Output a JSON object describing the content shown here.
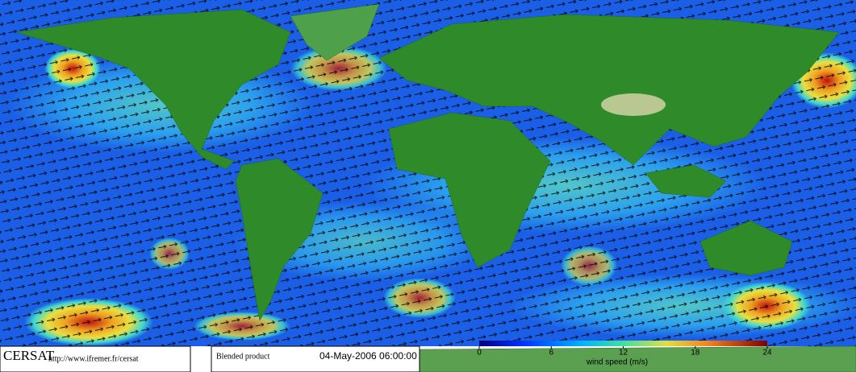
{
  "branding": {
    "name": "CERSAT",
    "url": "http://www.ifremer.fr/cersat"
  },
  "product": "Blended product",
  "timestamp": "04-May-2006 06:00:00",
  "colorbar": {
    "label": "wind speed (m/s)",
    "lim": [
      0,
      24
    ],
    "ticks": [
      0,
      6,
      12,
      18,
      24
    ]
  }
}
